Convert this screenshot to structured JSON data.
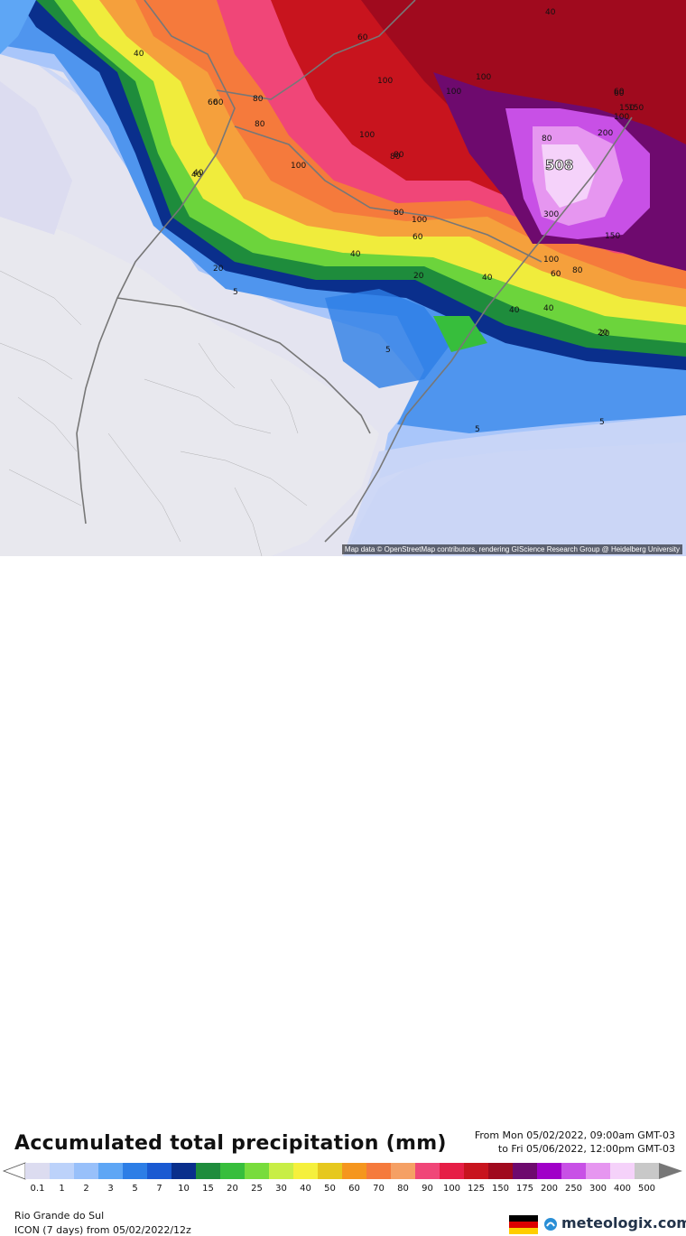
{
  "map": {
    "attribution": "Map data © OpenStreetMap contributors, rendering GIScience Research Group @ Heidelberg University",
    "max_value": "508",
    "contour_labels": [
      {
        "text": "40"
      },
      {
        "text": "40"
      },
      {
        "text": "60"
      },
      {
        "text": "60"
      },
      {
        "text": "80"
      },
      {
        "text": "80"
      },
      {
        "text": "60"
      },
      {
        "text": "100"
      },
      {
        "text": "100"
      },
      {
        "text": "100"
      },
      {
        "text": "100"
      },
      {
        "text": "150"
      },
      {
        "text": "80"
      },
      {
        "text": "100"
      },
      {
        "text": "60"
      },
      {
        "text": "40"
      },
      {
        "text": "80"
      },
      {
        "text": "100"
      },
      {
        "text": "60"
      },
      {
        "text": "100"
      },
      {
        "text": "20"
      },
      {
        "text": "40"
      },
      {
        "text": "40"
      },
      {
        "text": "20"
      },
      {
        "text": "40"
      },
      {
        "text": "5"
      },
      {
        "text": "300"
      },
      {
        "text": "150"
      },
      {
        "text": "100"
      },
      {
        "text": "80"
      },
      {
        "text": "60"
      },
      {
        "text": "80"
      },
      {
        "text": "40"
      },
      {
        "text": "20"
      },
      {
        "text": "5"
      },
      {
        "text": "5"
      },
      {
        "text": "5"
      },
      {
        "text": "200"
      },
      {
        "text": "150"
      },
      {
        "text": "60"
      },
      {
        "text": "80"
      },
      {
        "text": "40"
      },
      {
        "text": "20"
      }
    ]
  },
  "footer": {
    "title": "Accumulated total precipitation (mm)",
    "from_text": "From Mon 05/02/2022, 09:00am GMT-03",
    "to_text": "to Fri 05/06/2022, 12:00pm GMT-03",
    "region": "Rio Grande do Sul",
    "model": "ICON (7 days) from 05/02/2022/12z",
    "brand": "meteologix.com"
  },
  "legend": {
    "labels": [
      "0.1",
      "1",
      "2",
      "3",
      "5",
      "7",
      "10",
      "15",
      "20",
      "25",
      "30",
      "40",
      "50",
      "60",
      "70",
      "80",
      "90",
      "100",
      "125",
      "150",
      "175",
      "200",
      "250",
      "300",
      "400",
      "500"
    ],
    "colors": [
      "#dcdcf0",
      "#bcd2fa",
      "#98c0fa",
      "#5ea6f5",
      "#2d7ee6",
      "#1a5ad2",
      "#0a2f8c",
      "#1e8c3c",
      "#37be3c",
      "#78dc3c",
      "#c8ee46",
      "#f5f03c",
      "#e6c81e",
      "#f5961e",
      "#f57a3c",
      "#f5a064",
      "#f04678",
      "#e61e46",
      "#c8141e",
      "#a00a1e",
      "#6e0a6e",
      "#a000c8",
      "#c850e6",
      "#e696f0",
      "#f5d2fa",
      "#c8c8c8"
    ],
    "flag_colors": [
      "#000000",
      "#dd0000",
      "#ffce00"
    ]
  }
}
